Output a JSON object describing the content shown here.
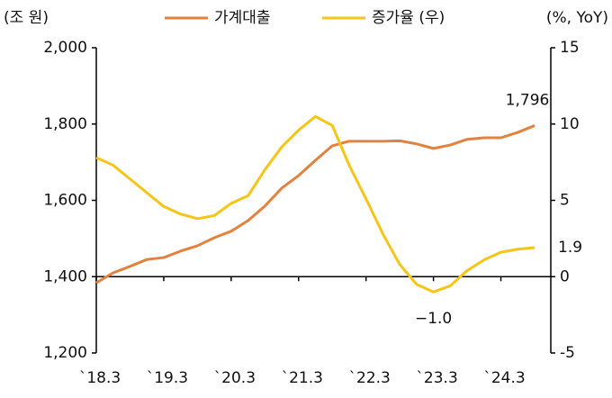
{
  "chart_data": {
    "type": "line",
    "ylabel": "(조 원)",
    "y2label": "(%, YoY)",
    "categories": [
      "`18.3",
      null,
      null,
      null,
      "`19.3",
      null,
      null,
      null,
      "`20.3",
      null,
      null,
      null,
      "`21.3",
      null,
      null,
      null,
      "`22.3",
      null,
      null,
      null,
      "`23.3",
      null,
      null,
      null,
      "`24.3",
      null,
      null
    ],
    "series": [
      {
        "name": "가계대출",
        "color": "#e3823f",
        "values": [
          1384,
          1410,
          1427,
          1445,
          1450,
          1467,
          1481,
          1502,
          1519,
          1547,
          1585,
          1632,
          1665,
          1705,
          1743,
          1755,
          1755,
          1755,
          1756,
          1748,
          1736,
          1745,
          1760,
          1764,
          1764,
          1778,
          1796
        ],
        "value_labels": [
          null,
          null,
          null,
          null,
          null,
          null,
          null,
          null,
          null,
          null,
          null,
          null,
          null,
          null,
          null,
          null,
          null,
          null,
          null,
          null,
          null,
          null,
          null,
          null,
          null,
          null,
          "1,796"
        ]
      },
      {
        "name": "증가율 (우)",
        "color": "#f5c518",
        "axis": "y2",
        "values": [
          7.8,
          7.3,
          6.4,
          5.5,
          4.6,
          4.1,
          3.8,
          4.0,
          4.8,
          5.3,
          7.0,
          8.5,
          9.6,
          10.5,
          9.9,
          7.3,
          5.1,
          2.8,
          0.8,
          -0.5,
          -1.0,
          -0.6,
          0.4,
          1.1,
          1.6,
          1.8,
          1.9
        ],
        "value_labels": [
          null,
          null,
          null,
          null,
          null,
          null,
          null,
          null,
          null,
          null,
          null,
          null,
          null,
          null,
          null,
          null,
          null,
          null,
          null,
          null,
          "−1.0",
          null,
          null,
          null,
          null,
          null,
          "1.9"
        ]
      }
    ],
    "ylim": [
      1200,
      2000
    ],
    "yticks": [
      {
        "value": 1200,
        "label": "1,200"
      },
      {
        "value": 1400,
        "label": "1,400"
      },
      {
        "value": 1600,
        "label": "1,600"
      },
      {
        "value": 1800,
        "label": "1,800"
      },
      {
        "value": 2000,
        "label": "2,000"
      }
    ],
    "y2lim": [
      -5,
      15
    ],
    "y2ticks": [
      -5,
      0,
      5,
      10,
      15
    ],
    "legend": "top",
    "grid": false
  }
}
